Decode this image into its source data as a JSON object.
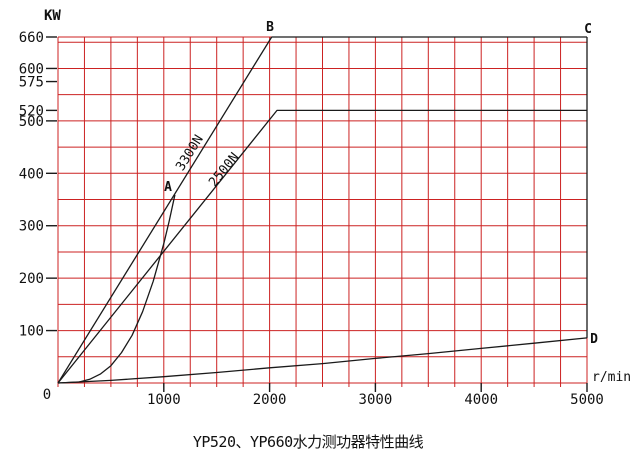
{
  "chart_data": {
    "type": "line",
    "title": "YP520、YP660水力测功器特性曲线",
    "xlabel": "r/min",
    "ylabel": "KW",
    "xlim": [
      0,
      5000
    ],
    "ylim": [
      0,
      660
    ],
    "x_tick_labels": [
      0,
      1000,
      2000,
      3000,
      4000,
      5000
    ],
    "y_tick_labels": [
      100,
      200,
      300,
      400,
      500,
      520,
      575,
      600,
      660
    ],
    "origin_label": "0",
    "grid": {
      "x_step": 250,
      "y_step": 50,
      "color": "#cc2222"
    },
    "line_color": "#1a1a1a",
    "legend": "none",
    "series": [
      {
        "name": "torque-line-3300N",
        "points": [
          [
            0,
            0
          ],
          [
            2020,
            660
          ]
        ]
      },
      {
        "name": "max-power-line-660",
        "points": [
          [
            2020,
            660
          ],
          [
            5000,
            660
          ]
        ]
      },
      {
        "name": "torque-line-2500N-with-520-limit",
        "points": [
          [
            0,
            0
          ],
          [
            2070,
            520
          ],
          [
            5000,
            520
          ]
        ]
      },
      {
        "name": "right-boundary-C-to-D",
        "points": [
          [
            5000,
            660
          ],
          [
            5000,
            86
          ]
        ]
      },
      {
        "name": "min-absorption-curve-to-D",
        "points": [
          [
            0,
            0
          ],
          [
            500,
            5
          ],
          [
            1000,
            12
          ],
          [
            1500,
            20
          ],
          [
            2000,
            29
          ],
          [
            2500,
            37
          ],
          [
            3000,
            47
          ],
          [
            3500,
            56
          ],
          [
            4000,
            66
          ],
          [
            4500,
            76
          ],
          [
            5000,
            86
          ]
        ]
      },
      {
        "name": "full-water-curve-to-A",
        "points": [
          [
            0,
            0
          ],
          [
            200,
            2
          ],
          [
            300,
            7
          ],
          [
            400,
            17
          ],
          [
            500,
            33
          ],
          [
            600,
            58
          ],
          [
            700,
            91
          ],
          [
            800,
            136
          ],
          [
            900,
            194
          ],
          [
            1000,
            266
          ],
          [
            1050,
            308
          ],
          [
            1105,
            359
          ]
        ]
      }
    ],
    "line_labels": [
      {
        "text": "3300N",
        "x": 1276,
        "y": 435,
        "angle": -58
      },
      {
        "text": "2500N",
        "x": 1598,
        "y": 402,
        "angle": -51
      }
    ],
    "point_labels": [
      {
        "text": "A",
        "x": 1040,
        "y": 374
      },
      {
        "text": "B",
        "x": 2004,
        "y": 679
      },
      {
        "text": "C",
        "x": 5009,
        "y": 675
      },
      {
        "text": "D",
        "x": 5066,
        "y": 84
      }
    ]
  }
}
